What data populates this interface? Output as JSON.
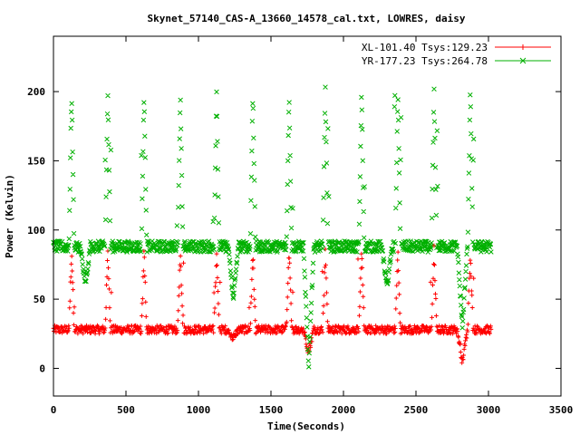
{
  "chart_data": {
    "type": "scatter",
    "title": "Skynet_57140_CAS-A_13660_14578_cal.txt, LOWRES, daisy",
    "xlabel": "Time(Seconds)",
    "ylabel": "Power (Kelvin)",
    "xlim": [
      0,
      3500
    ],
    "ylim": [
      -20,
      240
    ],
    "xticks": [
      0,
      500,
      1000,
      1500,
      2000,
      2500,
      3000,
      3500
    ],
    "yticks": [
      0,
      50,
      100,
      150,
      200
    ],
    "legend_position": "top-right",
    "grid": false,
    "peaks_x": [
      125,
      375,
      625,
      875,
      1125,
      1375,
      1625,
      1875,
      2125,
      2375,
      2625,
      2875
    ],
    "series": [
      {
        "name": "XL-101.40 Tsys:129.23",
        "color": "#ff0000",
        "marker": "+",
        "baseline": 28,
        "peak": 85,
        "dips": [
          [
            1240,
            22
          ],
          [
            1760,
            12
          ],
          [
            2820,
            5
          ]
        ]
      },
      {
        "name": "YR-177.23 Tsys:264.78",
        "color": "#00b000",
        "marker": "x",
        "baseline": 88,
        "peak": 201,
        "dips": [
          [
            220,
            60
          ],
          [
            1240,
            50
          ],
          [
            1760,
            0
          ],
          [
            2300,
            58
          ],
          [
            2820,
            30
          ]
        ]
      }
    ],
    "xmax_data": 3020
  }
}
